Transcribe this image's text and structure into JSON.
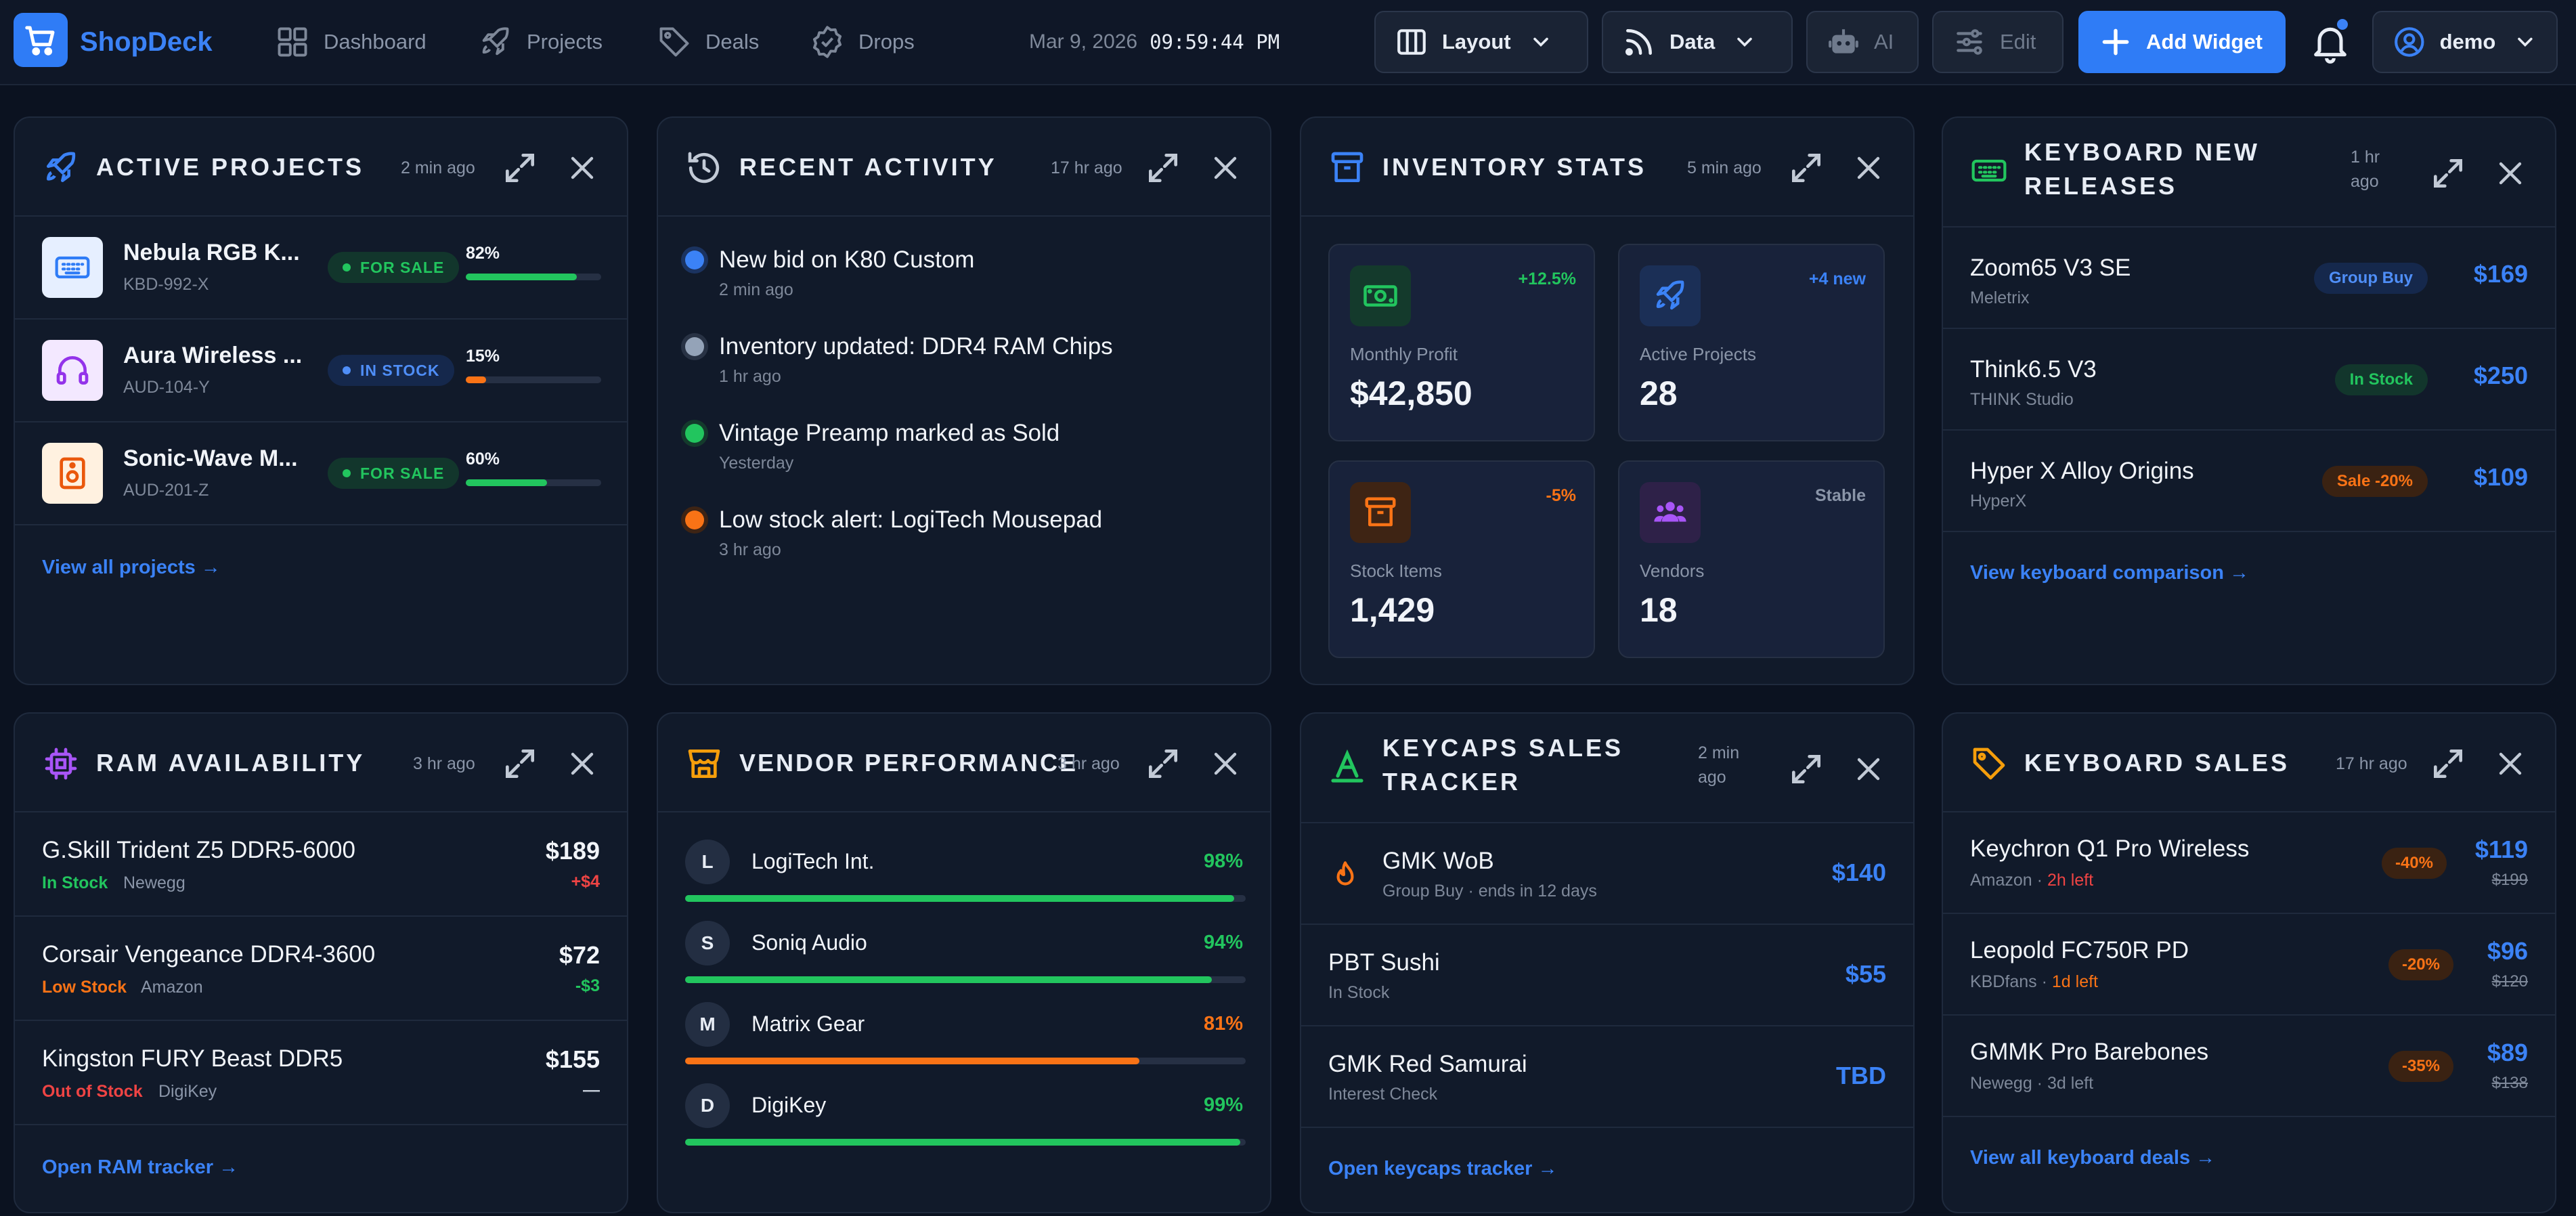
{
  "app": {
    "name": "ShopDeck"
  },
  "nav": [
    {
      "label": "Dashboard",
      "icon": "grid-icon"
    },
    {
      "label": "Projects",
      "icon": "rocket-icon"
    },
    {
      "label": "Deals",
      "icon": "tag-icon"
    },
    {
      "label": "Drops",
      "icon": "badge-check-icon"
    }
  ],
  "header": {
    "date": "Mar 9, 2026",
    "time": "09:59:44 PM",
    "layout_label": "Layout",
    "data_label": "Data",
    "ai_label": "AI",
    "edit_label": "Edit",
    "add_widget_label": "Add Widget",
    "user": "demo"
  },
  "colors": {
    "accent": "#2f7cf6",
    "green": "#22c55e",
    "orange": "#f97316",
    "red": "#ef4444",
    "purple": "#a855f7",
    "yellow": "#f59e0b"
  },
  "active_projects": {
    "title": "ACTIVE PROJECTS",
    "updated": "2 min ago",
    "items": [
      {
        "name": "Nebula RGB K...",
        "sku": "KBD-992-X",
        "status": "FOR SALE",
        "progress_label": "82%",
        "progress": 0.82,
        "icon": "keyboard-icon"
      },
      {
        "name": "Aura Wireless ...",
        "sku": "AUD-104-Y",
        "status": "IN STOCK",
        "progress_label": "15%",
        "progress": 0.15,
        "icon": "headphones-icon"
      },
      {
        "name": "Sonic-Wave M...",
        "sku": "AUD-201-Z",
        "status": "FOR SALE",
        "progress_label": "60%",
        "progress": 0.6,
        "icon": "speaker-icon"
      }
    ],
    "link": "View all projects →"
  },
  "recent_activity": {
    "title": "RECENT ACTIVITY",
    "updated": "17 hr ago",
    "items": [
      {
        "text": "New bid on K80 Custom",
        "time": "2 min ago"
      },
      {
        "text": "Inventory updated: DDR4 RAM Chips",
        "time": "1 hr ago"
      },
      {
        "text": "Vintage Preamp marked as Sold",
        "time": "Yesterday"
      },
      {
        "text": "Low stock alert: LogiTech Mousepad",
        "time": "3 hr ago"
      }
    ]
  },
  "inventory_stats": {
    "title": "INVENTORY STATS",
    "updated": "5 min ago",
    "stats": [
      {
        "label": "Monthly Profit",
        "value": "$42,850",
        "delta": "+12.5%",
        "icon": "money-icon"
      },
      {
        "label": "Active Projects",
        "value": "28",
        "delta": "+4 new",
        "icon": "rocket-icon"
      },
      {
        "label": "Stock Items",
        "value": "1,429",
        "delta": "-5%",
        "icon": "archive-icon"
      },
      {
        "label": "Vendors",
        "value": "18",
        "delta": "Stable",
        "icon": "users-icon"
      }
    ]
  },
  "keyboard_releases": {
    "title": "KEYBOARD NEW RELEASES",
    "updated": "1 hr ago",
    "items": [
      {
        "name": "Zoom65 V3 SE",
        "maker": "Meletrix",
        "tag": "Group Buy",
        "price": "$169"
      },
      {
        "name": "Think6.5 V3",
        "maker": "THINK Studio",
        "tag": "In Stock",
        "price": "$250"
      },
      {
        "name": "Hyper X Alloy Origins",
        "maker": "HyperX",
        "tag": "Sale -20%",
        "price": "$109"
      }
    ],
    "link": "View keyboard comparison →"
  },
  "ram_availability": {
    "title": "RAM AVAILABILITY",
    "updated": "3 hr ago",
    "items": [
      {
        "name": "G.Skill Trident Z5 DDR5-6000",
        "status": "In Stock",
        "vendor": "Newegg",
        "price": "$189",
        "delta": "+$4"
      },
      {
        "name": "Corsair Vengeance DDR4-3600",
        "status": "Low Stock",
        "vendor": "Amazon",
        "price": "$72",
        "delta": "-$3"
      },
      {
        "name": "Kingston FURY Beast DDR5",
        "status": "Out of Stock",
        "vendor": "DigiKey",
        "price": "$155",
        "delta": "—"
      }
    ],
    "link": "Open RAM tracker →"
  },
  "vendor_performance": {
    "title": "VENDOR PERFORMANCE",
    "updated": "3 hr ago",
    "items": [
      {
        "initial": "L",
        "name": "LogiTech Int.",
        "score_label": "98%",
        "score": 0.98
      },
      {
        "initial": "S",
        "name": "Soniq Audio",
        "score_label": "94%",
        "score": 0.94
      },
      {
        "initial": "M",
        "name": "Matrix Gear",
        "score_label": "81%",
        "score": 0.81
      },
      {
        "initial": "D",
        "name": "DigiKey",
        "score_label": "99%",
        "score": 0.99
      }
    ]
  },
  "keycaps_tracker": {
    "title": "KEYCAPS SALES TRACKER",
    "updated": "2 min ago",
    "items": [
      {
        "name": "GMK WoB",
        "sub": "Group Buy · ends in 12 days",
        "price": "$140"
      },
      {
        "name": "PBT Sushi",
        "sub": "In Stock",
        "price": "$55"
      },
      {
        "name": "GMK Red Samurai",
        "sub": "Interest Check",
        "price": "TBD"
      }
    ],
    "link": "Open keycaps tracker →"
  },
  "keyboard_sales": {
    "title": "KEYBOARD SALES",
    "updated": "17 hr ago",
    "items": [
      {
        "name": "Keychron Q1 Pro Wireless",
        "store": "Amazon",
        "left": "2h left",
        "discount": "-40%",
        "price": "$119",
        "old_price": "$199"
      },
      {
        "name": "Leopold FC750R PD",
        "store": "KBDfans",
        "left": "1d left",
        "discount": "-20%",
        "price": "$96",
        "old_price": "$120"
      },
      {
        "name": "GMMK Pro Barebones",
        "store": "Newegg",
        "left": "3d left",
        "discount": "-35%",
        "price": "$89",
        "old_price": "$138"
      }
    ],
    "link": "View all keyboard deals →"
  }
}
